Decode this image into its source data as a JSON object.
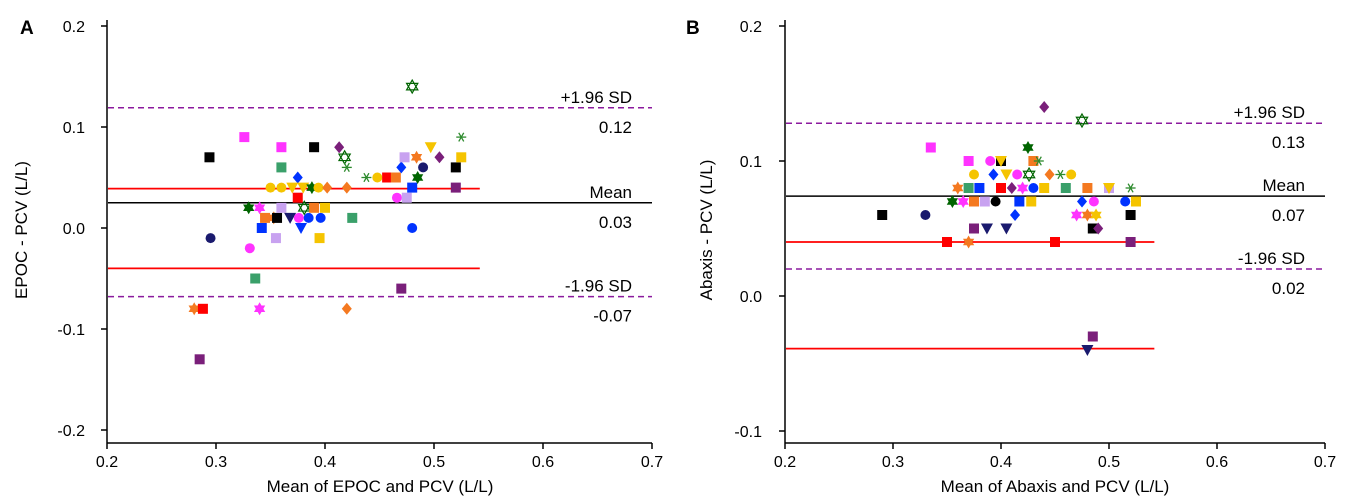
{
  "chart_data": [
    {
      "type": "scatter",
      "panel_label": "A",
      "xlabel": "Mean of EPOC and PCV (L/L)",
      "ylabel": "EPOC - PCV (L/L)",
      "xlim": [
        0.2,
        0.7
      ],
      "ylim": [
        -0.2,
        0.2
      ],
      "x_ticks": [
        "0.2",
        "0.3",
        "0.4",
        "0.5",
        "0.6",
        "0.7"
      ],
      "y_ticks": [
        "-0.2",
        "-0.1",
        "0.0",
        "0.1",
        "0.2"
      ],
      "y_tick_values": [
        -0.2,
        -0.1,
        0.0,
        0.1,
        0.2
      ],
      "reference_lines": [
        {
          "label": "+1.96 SD",
          "value_label": "0.12",
          "y": 0.119,
          "style": "dashed",
          "color": "#8B1A9E",
          "x_end": 0.7
        },
        {
          "label": "Mean",
          "value_label": "0.03",
          "y": 0.025,
          "style": "solid",
          "color": "#000000",
          "x_end": 0.7
        },
        {
          "label": "-1.96 SD",
          "value_label": "-0.07",
          "y": -0.068,
          "style": "dashed",
          "color": "#8B1A9E",
          "x_end": 0.7
        }
      ],
      "limit_lines": [
        {
          "y": 0.039,
          "x_start": 0.2,
          "x_end": 0.542,
          "color": "#FF0000"
        },
        {
          "y": -0.04,
          "x_start": 0.2,
          "x_end": 0.542,
          "color": "#FF0000"
        }
      ],
      "points": [
        {
          "x": 0.294,
          "y": 0.07,
          "shape": "square",
          "color": "#000000"
        },
        {
          "x": 0.295,
          "y": -0.01,
          "shape": "circle",
          "color": "#1a1a6e"
        },
        {
          "x": 0.285,
          "y": -0.13,
          "shape": "square",
          "color": "#7a1f7a"
        },
        {
          "x": 0.28,
          "y": -0.08,
          "shape": "star",
          "color": "#f47920"
        },
        {
          "x": 0.288,
          "y": -0.08,
          "shape": "square",
          "color": "#ff0000"
        },
        {
          "x": 0.326,
          "y": 0.09,
          "shape": "square",
          "color": "#ff33ff"
        },
        {
          "x": 0.33,
          "y": 0.02,
          "shape": "star",
          "color": "#006400"
        },
        {
          "x": 0.331,
          "y": -0.02,
          "shape": "circle",
          "color": "#ff33ff"
        },
        {
          "x": 0.336,
          "y": -0.05,
          "shape": "square",
          "color": "#3aa06a"
        },
        {
          "x": 0.34,
          "y": -0.08,
          "shape": "star",
          "color": "#ff33ff"
        },
        {
          "x": 0.34,
          "y": 0.02,
          "shape": "star",
          "color": "#ff33ff"
        },
        {
          "x": 0.342,
          "y": 0.0,
          "shape": "square",
          "color": "#0033ff"
        },
        {
          "x": 0.345,
          "y": 0.01,
          "shape": "square",
          "color": "#f47920"
        },
        {
          "x": 0.35,
          "y": 0.04,
          "shape": "circle",
          "color": "#f5c400"
        },
        {
          "x": 0.353,
          "y": 0.01,
          "shape": "star",
          "color": "#f47920"
        },
        {
          "x": 0.355,
          "y": -0.01,
          "shape": "square",
          "color": "#c8a2f0"
        },
        {
          "x": 0.356,
          "y": 0.01,
          "shape": "square",
          "color": "#000000"
        },
        {
          "x": 0.36,
          "y": 0.08,
          "shape": "square",
          "color": "#ff33ff"
        },
        {
          "x": 0.36,
          "y": 0.06,
          "shape": "square",
          "color": "#3aa06a"
        },
        {
          "x": 0.36,
          "y": 0.04,
          "shape": "circle",
          "color": "#f5c400"
        },
        {
          "x": 0.36,
          "y": 0.02,
          "shape": "square",
          "color": "#c8a2f0"
        },
        {
          "x": 0.368,
          "y": 0.01,
          "shape": "triangle-down",
          "color": "#1a1a6e"
        },
        {
          "x": 0.37,
          "y": 0.04,
          "shape": "triangle-down",
          "color": "#f5c400"
        },
        {
          "x": 0.375,
          "y": 0.05,
          "shape": "diamond",
          "color": "#0033ff"
        },
        {
          "x": 0.375,
          "y": 0.03,
          "shape": "square",
          "color": "#ff0000"
        },
        {
          "x": 0.376,
          "y": 0.01,
          "shape": "circle",
          "color": "#ff33ff"
        },
        {
          "x": 0.378,
          "y": 0.0,
          "shape": "triangle-down",
          "color": "#0033ff"
        },
        {
          "x": 0.38,
          "y": 0.04,
          "shape": "triangle-down",
          "color": "#f5c400"
        },
        {
          "x": 0.381,
          "y": 0.02,
          "shape": "star-open",
          "color": "#006400"
        },
        {
          "x": 0.385,
          "y": 0.01,
          "shape": "circle",
          "color": "#0033ff"
        },
        {
          "x": 0.388,
          "y": 0.04,
          "shape": "star",
          "color": "#006400"
        },
        {
          "x": 0.39,
          "y": 0.08,
          "shape": "square",
          "color": "#000000"
        },
        {
          "x": 0.39,
          "y": 0.02,
          "shape": "square",
          "color": "#f47920"
        },
        {
          "x": 0.394,
          "y": 0.04,
          "shape": "circle",
          "color": "#f5c400"
        },
        {
          "x": 0.395,
          "y": -0.01,
          "shape": "square",
          "color": "#f5c400"
        },
        {
          "x": 0.396,
          "y": 0.01,
          "shape": "circle",
          "color": "#0033ff"
        },
        {
          "x": 0.4,
          "y": 0.02,
          "shape": "square",
          "color": "#f5c400"
        },
        {
          "x": 0.402,
          "y": 0.04,
          "shape": "diamond",
          "color": "#f47920"
        },
        {
          "x": 0.413,
          "y": 0.08,
          "shape": "diamond",
          "color": "#7a1f7a"
        },
        {
          "x": 0.418,
          "y": 0.07,
          "shape": "star-open",
          "color": "#006400"
        },
        {
          "x": 0.42,
          "y": 0.06,
          "shape": "asterisk",
          "color": "#2d8a2d"
        },
        {
          "x": 0.42,
          "y": 0.04,
          "shape": "diamond",
          "color": "#f47920"
        },
        {
          "x": 0.42,
          "y": -0.08,
          "shape": "diamond",
          "color": "#f47920"
        },
        {
          "x": 0.425,
          "y": 0.01,
          "shape": "square",
          "color": "#3aa06a"
        },
        {
          "x": 0.438,
          "y": 0.05,
          "shape": "asterisk",
          "color": "#2d8a2d"
        },
        {
          "x": 0.448,
          "y": 0.05,
          "shape": "circle",
          "color": "#f5c400"
        },
        {
          "x": 0.457,
          "y": 0.05,
          "shape": "square",
          "color": "#ff0000"
        },
        {
          "x": 0.465,
          "y": 0.05,
          "shape": "square",
          "color": "#f47920"
        },
        {
          "x": 0.466,
          "y": 0.03,
          "shape": "circle",
          "color": "#ff33ff"
        },
        {
          "x": 0.47,
          "y": -0.06,
          "shape": "square",
          "color": "#7a1f7a"
        },
        {
          "x": 0.47,
          "y": 0.06,
          "shape": "diamond",
          "color": "#0033ff"
        },
        {
          "x": 0.473,
          "y": 0.07,
          "shape": "square",
          "color": "#c8a2f0"
        },
        {
          "x": 0.475,
          "y": 0.03,
          "shape": "square",
          "color": "#c8a2f0"
        },
        {
          "x": 0.48,
          "y": 0.14,
          "shape": "star-open",
          "color": "#006400"
        },
        {
          "x": 0.48,
          "y": 0.04,
          "shape": "square",
          "color": "#0033ff"
        },
        {
          "x": 0.48,
          "y": 0.0,
          "shape": "circle",
          "color": "#0033ff"
        },
        {
          "x": 0.484,
          "y": 0.07,
          "shape": "star",
          "color": "#f47920"
        },
        {
          "x": 0.485,
          "y": 0.05,
          "shape": "star",
          "color": "#006400"
        },
        {
          "x": 0.49,
          "y": 0.06,
          "shape": "circle",
          "color": "#1a1a6e"
        },
        {
          "x": 0.497,
          "y": 0.08,
          "shape": "triangle-down",
          "color": "#f5c400"
        },
        {
          "x": 0.505,
          "y": 0.07,
          "shape": "diamond",
          "color": "#7a1f7a"
        },
        {
          "x": 0.52,
          "y": 0.06,
          "shape": "square",
          "color": "#000000"
        },
        {
          "x": 0.52,
          "y": 0.04,
          "shape": "square",
          "color": "#7a1f7a"
        },
        {
          "x": 0.525,
          "y": 0.07,
          "shape": "square",
          "color": "#f5c400"
        },
        {
          "x": 0.525,
          "y": 0.09,
          "shape": "asterisk",
          "color": "#2d8a2d"
        }
      ]
    },
    {
      "type": "scatter",
      "panel_label": "B",
      "xlabel": "Mean of Abaxis and PCV (L/L)",
      "ylabel": "Abaxis - PCV (L/L)",
      "xlim": [
        0.2,
        0.7
      ],
      "ylim": [
        -0.1,
        0.2
      ],
      "x_ticks": [
        "0.2",
        "0.3",
        "0.4",
        "0.5",
        "0.6",
        "0.7"
      ],
      "y_ticks": [
        "-0.1",
        "0.0",
        "0.1",
        "0.2"
      ],
      "y_tick_values": [
        -0.1,
        0.0,
        0.1,
        0.2
      ],
      "reference_lines": [
        {
          "label": "+1.96 SD",
          "value_label": "0.13",
          "y": 0.128,
          "style": "dashed",
          "color": "#8B1A9E",
          "x_end": 0.7
        },
        {
          "label": "Mean",
          "value_label": "0.07",
          "y": 0.074,
          "style": "solid",
          "color": "#000000",
          "x_end": 0.7
        },
        {
          "label": "-1.96 SD",
          "value_label": "0.02",
          "y": 0.02,
          "style": "dashed",
          "color": "#8B1A9E",
          "x_end": 0.7
        }
      ],
      "limit_lines": [
        {
          "y": 0.04,
          "x_start": 0.2,
          "x_end": 0.542,
          "color": "#FF0000"
        },
        {
          "y": -0.039,
          "x_start": 0.2,
          "x_end": 0.542,
          "color": "#FF0000"
        }
      ],
      "points": [
        {
          "x": 0.29,
          "y": 0.06,
          "shape": "square",
          "color": "#000000"
        },
        {
          "x": 0.33,
          "y": 0.06,
          "shape": "circle",
          "color": "#1a1a6e"
        },
        {
          "x": 0.335,
          "y": 0.11,
          "shape": "square",
          "color": "#ff33ff"
        },
        {
          "x": 0.35,
          "y": 0.04,
          "shape": "square",
          "color": "#ff0000"
        },
        {
          "x": 0.355,
          "y": 0.07,
          "shape": "star",
          "color": "#006400"
        },
        {
          "x": 0.36,
          "y": 0.08,
          "shape": "star",
          "color": "#f47920"
        },
        {
          "x": 0.365,
          "y": 0.07,
          "shape": "star",
          "color": "#ff33ff"
        },
        {
          "x": 0.37,
          "y": 0.1,
          "shape": "square",
          "color": "#ff33ff"
        },
        {
          "x": 0.37,
          "y": 0.08,
          "shape": "square",
          "color": "#3aa06a"
        },
        {
          "x": 0.37,
          "y": 0.04,
          "shape": "star",
          "color": "#f47920"
        },
        {
          "x": 0.375,
          "y": 0.09,
          "shape": "circle",
          "color": "#f5c400"
        },
        {
          "x": 0.375,
          "y": 0.07,
          "shape": "square",
          "color": "#f47920"
        },
        {
          "x": 0.375,
          "y": 0.05,
          "shape": "square",
          "color": "#7a1f7a"
        },
        {
          "x": 0.38,
          "y": 0.08,
          "shape": "square",
          "color": "#0033ff"
        },
        {
          "x": 0.385,
          "y": 0.07,
          "shape": "square",
          "color": "#c8a2f0"
        },
        {
          "x": 0.387,
          "y": 0.05,
          "shape": "triangle-down",
          "color": "#1a1a6e"
        },
        {
          "x": 0.39,
          "y": 0.1,
          "shape": "circle",
          "color": "#ff33ff"
        },
        {
          "x": 0.393,
          "y": 0.09,
          "shape": "diamond",
          "color": "#0033ff"
        },
        {
          "x": 0.395,
          "y": 0.07,
          "shape": "circle",
          "color": "#000000"
        },
        {
          "x": 0.4,
          "y": 0.1,
          "shape": "square",
          "color": "#000000"
        },
        {
          "x": 0.4,
          "y": 0.1,
          "shape": "triangle-down",
          "color": "#f5c400"
        },
        {
          "x": 0.4,
          "y": 0.08,
          "shape": "square",
          "color": "#ff0000"
        },
        {
          "x": 0.405,
          "y": 0.09,
          "shape": "triangle-down",
          "color": "#f5c400"
        },
        {
          "x": 0.405,
          "y": 0.05,
          "shape": "triangle-down",
          "color": "#1a1a6e"
        },
        {
          "x": 0.41,
          "y": 0.08,
          "shape": "diamond",
          "color": "#7a1f7a"
        },
        {
          "x": 0.413,
          "y": 0.06,
          "shape": "diamond",
          "color": "#0033ff"
        },
        {
          "x": 0.415,
          "y": 0.09,
          "shape": "circle",
          "color": "#ff33ff"
        },
        {
          "x": 0.417,
          "y": 0.07,
          "shape": "square",
          "color": "#0033ff"
        },
        {
          "x": 0.42,
          "y": 0.08,
          "shape": "star",
          "color": "#ff33ff"
        },
        {
          "x": 0.425,
          "y": 0.11,
          "shape": "star",
          "color": "#006400"
        },
        {
          "x": 0.426,
          "y": 0.09,
          "shape": "star-open",
          "color": "#006400"
        },
        {
          "x": 0.428,
          "y": 0.07,
          "shape": "square",
          "color": "#f5c400"
        },
        {
          "x": 0.43,
          "y": 0.1,
          "shape": "square",
          "color": "#f47920"
        },
        {
          "x": 0.43,
          "y": 0.08,
          "shape": "circle",
          "color": "#0033ff"
        },
        {
          "x": 0.435,
          "y": 0.1,
          "shape": "asterisk",
          "color": "#2d8a2d"
        },
        {
          "x": 0.44,
          "y": 0.14,
          "shape": "diamond",
          "color": "#7a1f7a"
        },
        {
          "x": 0.44,
          "y": 0.08,
          "shape": "square",
          "color": "#f5c400"
        },
        {
          "x": 0.445,
          "y": 0.09,
          "shape": "diamond",
          "color": "#f47920"
        },
        {
          "x": 0.45,
          "y": 0.04,
          "shape": "square",
          "color": "#ff0000"
        },
        {
          "x": 0.455,
          "y": 0.09,
          "shape": "asterisk",
          "color": "#2d8a2d"
        },
        {
          "x": 0.46,
          "y": 0.08,
          "shape": "square",
          "color": "#3aa06a"
        },
        {
          "x": 0.465,
          "y": 0.09,
          "shape": "circle",
          "color": "#f5c400"
        },
        {
          "x": 0.47,
          "y": 0.06,
          "shape": "star",
          "color": "#ff33ff"
        },
        {
          "x": 0.475,
          "y": 0.13,
          "shape": "star-open",
          "color": "#006400"
        },
        {
          "x": 0.475,
          "y": 0.07,
          "shape": "diamond",
          "color": "#0033ff"
        },
        {
          "x": 0.48,
          "y": 0.08,
          "shape": "square",
          "color": "#f47920"
        },
        {
          "x": 0.48,
          "y": 0.06,
          "shape": "star",
          "color": "#f47920"
        },
        {
          "x": 0.48,
          "y": -0.04,
          "shape": "triangle-down",
          "color": "#1a1a6e"
        },
        {
          "x": 0.485,
          "y": -0.03,
          "shape": "square",
          "color": "#7a1f7a"
        },
        {
          "x": 0.485,
          "y": 0.05,
          "shape": "square",
          "color": "#000000"
        },
        {
          "x": 0.486,
          "y": 0.07,
          "shape": "circle",
          "color": "#ff33ff"
        },
        {
          "x": 0.488,
          "y": 0.06,
          "shape": "star",
          "color": "#f5c400"
        },
        {
          "x": 0.49,
          "y": 0.05,
          "shape": "diamond",
          "color": "#7a1f7a"
        },
        {
          "x": 0.5,
          "y": 0.08,
          "shape": "square",
          "color": "#c8a2f0"
        },
        {
          "x": 0.5,
          "y": 0.08,
          "shape": "triangle-down",
          "color": "#f5c400"
        },
        {
          "x": 0.515,
          "y": 0.07,
          "shape": "circle",
          "color": "#0033ff"
        },
        {
          "x": 0.52,
          "y": 0.08,
          "shape": "asterisk",
          "color": "#2d8a2d"
        },
        {
          "x": 0.52,
          "y": 0.06,
          "shape": "square",
          "color": "#000000"
        },
        {
          "x": 0.52,
          "y": 0.04,
          "shape": "square",
          "color": "#7a1f7a"
        },
        {
          "x": 0.525,
          "y": 0.07,
          "shape": "square",
          "color": "#f5c400"
        }
      ]
    }
  ]
}
